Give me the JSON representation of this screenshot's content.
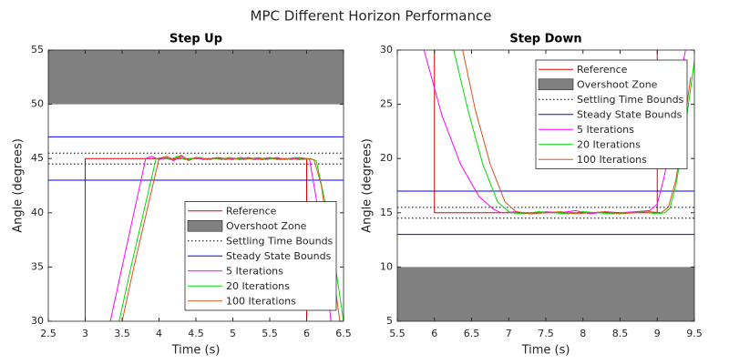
{
  "title": "MPC Different Horizon Performance",
  "chart_data": [
    {
      "type": "line",
      "title": "Step Up",
      "x_label": "Time (s)",
      "y_label": "Angle (degrees)",
      "xlim": [
        2.5,
        6.5
      ],
      "ylim": [
        30,
        55
      ],
      "xticks": [
        2.5,
        3,
        3.5,
        4,
        4.5,
        5,
        5.5,
        6,
        6.5
      ],
      "yticks": [
        30,
        35,
        40,
        45,
        50,
        55
      ],
      "legend": "lower right",
      "series": [
        {
          "name": "Reference",
          "color": "#e00000",
          "x": [
            3,
            3,
            6,
            6
          ],
          "values": [
            30,
            45,
            45,
            30
          ]
        },
        {
          "name": "Overshoot Zone",
          "color": "#808080",
          "range": [
            50,
            55
          ]
        },
        {
          "name": "Settling Time Bounds",
          "color": "#000000",
          "style": "dotted",
          "levels": [
            44.5,
            45.5
          ]
        },
        {
          "name": "Steady State Bounds",
          "color": "#0000ff",
          "levels": [
            43,
            47
          ]
        },
        {
          "name": "5 Iterations",
          "color": "#ff00ff",
          "x": [
            3.34,
            3.5,
            3.66,
            3.82,
            3.9,
            4.0,
            4.1,
            4.2,
            4.3,
            4.4,
            4.5,
            4.6,
            4.7,
            4.8,
            4.9,
            5.0,
            5.1,
            5.2,
            5.3,
            5.4,
            5.5,
            5.6,
            5.7,
            5.8,
            5.9,
            6.0,
            6.04,
            6.15,
            6.25,
            6.33
          ],
          "values": [
            30,
            35,
            40,
            45,
            45.2,
            44.9,
            45.1,
            44.8,
            45.2,
            44.9,
            45.1,
            44.9,
            45.0,
            45.1,
            44.9,
            45.0,
            44.9,
            45.1,
            45.0,
            44.9,
            45.0,
            45.1,
            44.9,
            45.0,
            44.9,
            45.0,
            44.9,
            40.5,
            35,
            30
          ]
        },
        {
          "name": "20 Iterations",
          "color": "#00dd00",
          "x": [
            3.46,
            3.62,
            3.79,
            3.96,
            4.05,
            4.15,
            4.25,
            4.35,
            4.45,
            4.55,
            4.65,
            4.75,
            4.85,
            4.95,
            5.05,
            5.15,
            5.25,
            5.35,
            5.45,
            5.55,
            5.65,
            5.75,
            5.85,
            5.95,
            6.05,
            6.13,
            6.25,
            6.38,
            6.5
          ],
          "values": [
            30,
            35,
            40,
            45,
            45.1,
            44.9,
            45.2,
            44.9,
            45.0,
            45.1,
            44.9,
            45.0,
            44.9,
            45.1,
            45.0,
            44.9,
            45.0,
            45.1,
            44.9,
            45.0,
            44.9,
            45.0,
            45.1,
            44.9,
            45.0,
            44.8,
            41,
            35.5,
            30
          ]
        },
        {
          "name": "100 Iterations",
          "color": "#d95319",
          "x": [
            3.5,
            3.66,
            3.83,
            4.0,
            4.1,
            4.2,
            4.3,
            4.4,
            4.5,
            4.6,
            4.7,
            4.8,
            4.9,
            5.0,
            5.1,
            5.2,
            5.3,
            5.4,
            5.5,
            5.6,
            5.7,
            5.8,
            5.9,
            6.0,
            6.1,
            6.2,
            6.33,
            6.45
          ],
          "values": [
            30,
            35,
            40,
            45,
            45.2,
            44.9,
            45.3,
            44.8,
            45.1,
            45.0,
            44.9,
            45.1,
            45.0,
            44.9,
            45.1,
            45.0,
            44.9,
            45.0,
            45.1,
            44.9,
            45.0,
            44.9,
            45.1,
            45.0,
            44.9,
            42.5,
            36,
            30
          ]
        }
      ]
    },
    {
      "type": "line",
      "title": "Step Down",
      "x_label": "Time (s)",
      "y_label": "Angle (degrees)",
      "xlim": [
        5.5,
        9.5
      ],
      "ylim": [
        5,
        30
      ],
      "xticks": [
        5.5,
        6,
        6.5,
        7,
        7.5,
        8,
        8.5,
        9,
        9.5
      ],
      "yticks": [
        5,
        10,
        15,
        20,
        25,
        30
      ],
      "legend": "upper right",
      "series": [
        {
          "name": "Reference",
          "color": "#e00000",
          "x": [
            6,
            6,
            9,
            9
          ],
          "values": [
            30,
            15,
            15,
            30
          ]
        },
        {
          "name": "Overshoot Zone",
          "color": "#808080",
          "range": [
            5,
            10
          ]
        },
        {
          "name": "Settling Time Bounds",
          "color": "#000000",
          "style": "dotted",
          "levels": [
            14.5,
            15.5
          ]
        },
        {
          "name": "Steady State Bounds",
          "color": "#0000ff",
          "levels": [
            13,
            17
          ]
        },
        {
          "name": "5 Iterations",
          "color": "#ff00ff",
          "x": [
            5.86,
            6.1,
            6.35,
            6.6,
            6.8,
            6.9,
            7.1,
            7.3,
            7.5,
            7.7,
            7.9,
            8.1,
            8.3,
            8.5,
            8.7,
            8.9,
            9.0,
            9.1,
            9.2,
            9.3,
            9.38
          ],
          "values": [
            30,
            24,
            19.5,
            16.5,
            15.3,
            15.0,
            15.1,
            14.9,
            15.1,
            15.0,
            15.2,
            14.9,
            15.1,
            15.0,
            15.1,
            15.2,
            15.8,
            18.5,
            22.5,
            27,
            30
          ]
        },
        {
          "name": "20 Iterations",
          "color": "#00dd00",
          "x": [
            6.26,
            6.45,
            6.65,
            6.85,
            7.02,
            7.2,
            7.4,
            7.6,
            7.8,
            8.0,
            8.2,
            8.4,
            8.6,
            8.8,
            9.0,
            9.1,
            9.17,
            9.25,
            9.35,
            9.45,
            9.5
          ],
          "values": [
            30,
            24.5,
            19.5,
            16,
            15,
            14.9,
            15.1,
            15.0,
            14.9,
            15.1,
            15.0,
            14.9,
            15.0,
            15.1,
            14.9,
            15.0,
            15.4,
            17.5,
            21.5,
            26.5,
            29
          ]
        },
        {
          "name": "100 Iterations",
          "color": "#d95319",
          "x": [
            6.38,
            6.55,
            6.75,
            6.95,
            7.1,
            7.3,
            7.5,
            7.7,
            7.9,
            8.1,
            8.3,
            8.5,
            8.7,
            8.9,
            9.05,
            9.15,
            9.25,
            9.35,
            9.45
          ],
          "values": [
            30,
            24.5,
            19.5,
            16,
            15.1,
            14.9,
            15.0,
            15.1,
            14.9,
            15.0,
            15.1,
            14.9,
            15.0,
            15.1,
            15.0,
            15.5,
            18,
            22.5,
            27.5
          ]
        }
      ]
    }
  ]
}
